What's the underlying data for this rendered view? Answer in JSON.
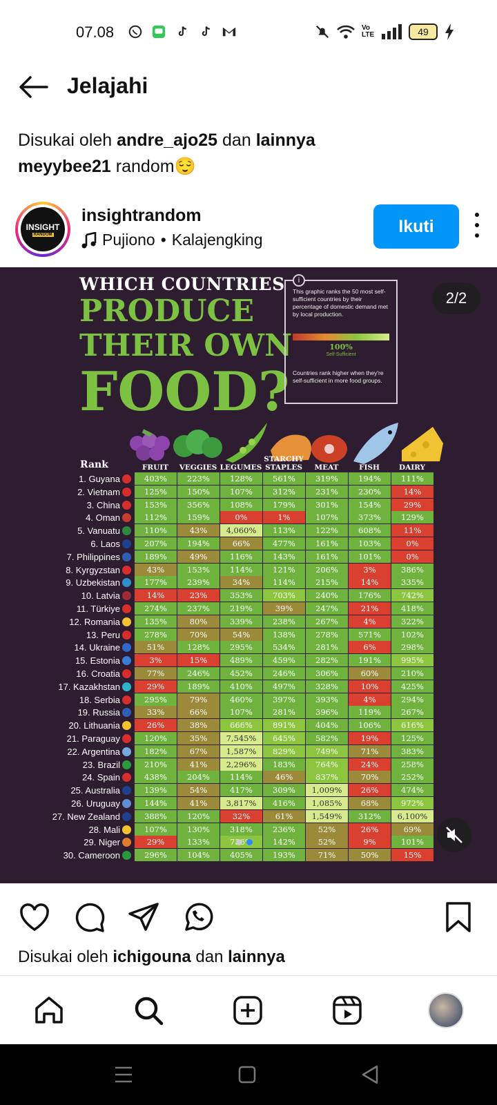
{
  "status_bar": {
    "time": "07.08",
    "battery": "49",
    "network": "Vo LTE"
  },
  "header": {
    "title": "Jelajahi"
  },
  "liked_top": {
    "prefix": "Disukai oleh",
    "user": "andre_ajo25",
    "mid": "dan",
    "others": "lainnya"
  },
  "caption": {
    "user": "meyybee21",
    "text": "random😌"
  },
  "post": {
    "username": "insightrandom",
    "avatar_text": "INSIGHT",
    "avatar_sub": "RANDOM",
    "music_artist": "Pujiono",
    "music_sep": "•",
    "music_title": "Kalajengking",
    "follow_label": "Ikuti",
    "slide_indicator": "2/2"
  },
  "infographic": {
    "title_line1": "WHICH COUNTRIES",
    "title_line2": "PRODUCE",
    "title_line3": "THEIR OWN",
    "title_line4": "FOOD?",
    "info_text": "This graphic ranks the 50 most self-sufficient countries by their percentage of domestic demand met by local production.",
    "info_pct": "100%",
    "info_pct_label": "Self-Sufficient",
    "info_footer": "Countries rank higher when they're self-sufficient in more food groups.",
    "rank_header": "Rank",
    "columns": [
      "FRUIT",
      "VEGGIES",
      "LEGUMES",
      "STARCHY STAPLES",
      "MEAT",
      "FISH",
      "DAIRY"
    ]
  },
  "chart_data": {
    "type": "table",
    "columns": [
      "FRUIT",
      "VEGGIES",
      "LEGUMES",
      "STARCHY STAPLES",
      "MEAT",
      "FISH",
      "DAIRY"
    ],
    "rows": [
      {
        "rank": "1. Guyana",
        "values": [
          "403%",
          "223%",
          "128%",
          "561%",
          "319%",
          "194%",
          "111%"
        ],
        "c": [
          "dg",
          "dg",
          "dg",
          "dg",
          "dg",
          "dg",
          "dg"
        ]
      },
      {
        "rank": "2. Vietnam",
        "values": [
          "125%",
          "150%",
          "107%",
          "312%",
          "231%",
          "230%",
          "14%"
        ],
        "c": [
          "dg",
          "dg",
          "dg",
          "dg",
          "dg",
          "dg",
          "r"
        ]
      },
      {
        "rank": "3. China",
        "values": [
          "153%",
          "356%",
          "108%",
          "179%",
          "301%",
          "154%",
          "29%"
        ],
        "c": [
          "dg",
          "dg",
          "dg",
          "dg",
          "dg",
          "dg",
          "r"
        ]
      },
      {
        "rank": "4. Oman",
        "values": [
          "112%",
          "159%",
          "0%",
          "1%",
          "107%",
          "373%",
          "129%"
        ],
        "c": [
          "dg",
          "dg",
          "r",
          "r",
          "dg",
          "dg",
          "dg"
        ]
      },
      {
        "rank": "5. Vanuatu",
        "values": [
          "110%",
          "43%",
          "4,060%",
          "113%",
          "122%",
          "608%",
          "11%"
        ],
        "c": [
          "dg",
          "o",
          "lg",
          "dg",
          "dg",
          "dg",
          "r"
        ]
      },
      {
        "rank": "6. Laos",
        "values": [
          "207%",
          "194%",
          "66%",
          "477%",
          "161%",
          "103%",
          "0%"
        ],
        "c": [
          "dg",
          "dg",
          "o",
          "dg",
          "dg",
          "dg",
          "r"
        ]
      },
      {
        "rank": "7. Philippines",
        "values": [
          "189%",
          "49%",
          "116%",
          "143%",
          "161%",
          "101%",
          "0%"
        ],
        "c": [
          "dg",
          "o",
          "dg",
          "dg",
          "dg",
          "dg",
          "r"
        ]
      },
      {
        "rank": "8. Kyrgyzstan",
        "values": [
          "43%",
          "153%",
          "114%",
          "121%",
          "206%",
          "3%",
          "386%"
        ],
        "c": [
          "o",
          "dg",
          "dg",
          "dg",
          "dg",
          "r",
          "dg"
        ]
      },
      {
        "rank": "9. Uzbekistan",
        "values": [
          "177%",
          "239%",
          "34%",
          "114%",
          "215%",
          "14%",
          "335%"
        ],
        "c": [
          "dg",
          "dg",
          "o",
          "dg",
          "dg",
          "r",
          "dg"
        ]
      },
      {
        "rank": "10. Latvia",
        "values": [
          "14%",
          "23%",
          "353%",
          "703%",
          "240%",
          "176%",
          "742%"
        ],
        "c": [
          "r",
          "r",
          "dg",
          "g",
          "dg",
          "dg",
          "g"
        ]
      },
      {
        "rank": "11. Türkiye",
        "values": [
          "274%",
          "237%",
          "219%",
          "39%",
          "247%",
          "21%",
          "418%"
        ],
        "c": [
          "dg",
          "dg",
          "dg",
          "o",
          "dg",
          "r",
          "dg"
        ]
      },
      {
        "rank": "12. Romania",
        "values": [
          "135%",
          "80%",
          "339%",
          "238%",
          "267%",
          "4%",
          "322%"
        ],
        "c": [
          "dg",
          "o",
          "dg",
          "dg",
          "dg",
          "r",
          "dg"
        ]
      },
      {
        "rank": "13. Peru",
        "values": [
          "278%",
          "70%",
          "54%",
          "138%",
          "278%",
          "571%",
          "102%"
        ],
        "c": [
          "dg",
          "o",
          "o",
          "dg",
          "dg",
          "dg",
          "dg"
        ]
      },
      {
        "rank": "14. Ukraine",
        "values": [
          "51%",
          "128%",
          "295%",
          "534%",
          "281%",
          "6%",
          "298%"
        ],
        "c": [
          "o",
          "dg",
          "dg",
          "dg",
          "dg",
          "r",
          "dg"
        ]
      },
      {
        "rank": "15. Estonia",
        "values": [
          "3%",
          "15%",
          "489%",
          "459%",
          "282%",
          "191%",
          "995%"
        ],
        "c": [
          "r",
          "r",
          "dg",
          "dg",
          "dg",
          "dg",
          "g"
        ]
      },
      {
        "rank": "16. Croatia",
        "values": [
          "77%",
          "246%",
          "452%",
          "246%",
          "306%",
          "60%",
          "210%"
        ],
        "c": [
          "o",
          "dg",
          "dg",
          "dg",
          "dg",
          "o",
          "dg"
        ]
      },
      {
        "rank": "17. Kazakhstan",
        "values": [
          "29%",
          "189%",
          "410%",
          "497%",
          "328%",
          "10%",
          "425%"
        ],
        "c": [
          "r",
          "dg",
          "dg",
          "dg",
          "dg",
          "r",
          "dg"
        ]
      },
      {
        "rank": "18. Serbia",
        "values": [
          "295%",
          "79%",
          "460%",
          "397%",
          "393%",
          "4%",
          "294%"
        ],
        "c": [
          "dg",
          "o",
          "dg",
          "dg",
          "dg",
          "r",
          "dg"
        ]
      },
      {
        "rank": "19. Russia",
        "values": [
          "33%",
          "66%",
          "107%",
          "281%",
          "396%",
          "119%",
          "267%"
        ],
        "c": [
          "o",
          "o",
          "dg",
          "dg",
          "dg",
          "dg",
          "dg"
        ]
      },
      {
        "rank": "20. Lithuania",
        "values": [
          "26%",
          "38%",
          "666%",
          "891%",
          "404%",
          "106%",
          "616%"
        ],
        "c": [
          "r",
          "o",
          "g",
          "g",
          "dg",
          "dg",
          "g"
        ]
      },
      {
        "rank": "21. Paraguay",
        "values": [
          "120%",
          "35%",
          "7,545%",
          "645%",
          "582%",
          "19%",
          "125%"
        ],
        "c": [
          "dg",
          "o",
          "lg",
          "g",
          "dg",
          "r",
          "dg"
        ]
      },
      {
        "rank": "22. Argentina",
        "values": [
          "182%",
          "67%",
          "1,587%",
          "829%",
          "749%",
          "71%",
          "383%"
        ],
        "c": [
          "dg",
          "o",
          "lg",
          "g",
          "g",
          "o",
          "dg"
        ]
      },
      {
        "rank": "23. Brazil",
        "values": [
          "210%",
          "41%",
          "2,296%",
          "183%",
          "764%",
          "24%",
          "258%"
        ],
        "c": [
          "dg",
          "o",
          "lg",
          "dg",
          "g",
          "r",
          "dg"
        ]
      },
      {
        "rank": "24. Spain",
        "values": [
          "438%",
          "204%",
          "114%",
          "46%",
          "837%",
          "70%",
          "252%"
        ],
        "c": [
          "dg",
          "dg",
          "dg",
          "o",
          "g",
          "o",
          "dg"
        ]
      },
      {
        "rank": "25. Australia",
        "values": [
          "139%",
          "54%",
          "417%",
          "309%",
          "1,009%",
          "26%",
          "474%"
        ],
        "c": [
          "dg",
          "o",
          "dg",
          "dg",
          "lg",
          "r",
          "dg"
        ]
      },
      {
        "rank": "26. Uruguay",
        "values": [
          "144%",
          "41%",
          "3,817%",
          "416%",
          "1,085%",
          "68%",
          "972%"
        ],
        "c": [
          "dg",
          "o",
          "lg",
          "dg",
          "lg",
          "o",
          "g"
        ]
      },
      {
        "rank": "27. New Zealand",
        "values": [
          "388%",
          "120%",
          "32%",
          "61%",
          "1,549%",
          "312%",
          "6,100%"
        ],
        "c": [
          "dg",
          "dg",
          "r",
          "o",
          "lg",
          "dg",
          "lg"
        ]
      },
      {
        "rank": "28. Mali",
        "values": [
          "107%",
          "130%",
          "318%",
          "236%",
          "52%",
          "26%",
          "69%"
        ],
        "c": [
          "dg",
          "dg",
          "dg",
          "dg",
          "o",
          "r",
          "o"
        ]
      },
      {
        "rank": "29. Niger",
        "values": [
          "29%",
          "133%",
          "736%",
          "142%",
          "52%",
          "9%",
          "101%"
        ],
        "c": [
          "r",
          "dg",
          "g",
          "dg",
          "o",
          "r",
          "dg"
        ]
      },
      {
        "rank": "30. Cameroon",
        "values": [
          "296%",
          "104%",
          "405%",
          "193%",
          "71%",
          "50%",
          "15%"
        ],
        "c": [
          "dg",
          "dg",
          "dg",
          "dg",
          "o",
          "o",
          "r"
        ]
      }
    ]
  },
  "flag_colors": [
    "#d62d2d",
    "#d62d2d",
    "#d62d2d",
    "#c83b2f",
    "#2b8a3e",
    "#1f3f8f",
    "#2f5fb3",
    "#d62d2d",
    "#2f8fc9",
    "#9e2b35",
    "#d62d2d",
    "#f2c230",
    "#d62d2d",
    "#2f68c9",
    "#3a7bd5",
    "#d62d2d",
    "#2fb3c9",
    "#d62d2d",
    "#2f5fb3",
    "#f2c230",
    "#d62d2d",
    "#75aadb",
    "#2b9a3e",
    "#d62d2d",
    "#1f3f8f",
    "#5f8fd5",
    "#1f3f8f",
    "#f2c230",
    "#e07a2f",
    "#2b9a3e"
  ],
  "liked_bottom": {
    "prefix": "Disukai oleh",
    "user": "ichigouna",
    "mid": "dan",
    "others": "lainnya"
  },
  "icons": {
    "actions": [
      "heart-icon",
      "comment-icon",
      "share-icon",
      "whatsapp-icon",
      "bookmark-icon"
    ],
    "nav": [
      "home-icon",
      "search-icon",
      "create-icon",
      "reels-icon",
      "profile-icon"
    ]
  }
}
